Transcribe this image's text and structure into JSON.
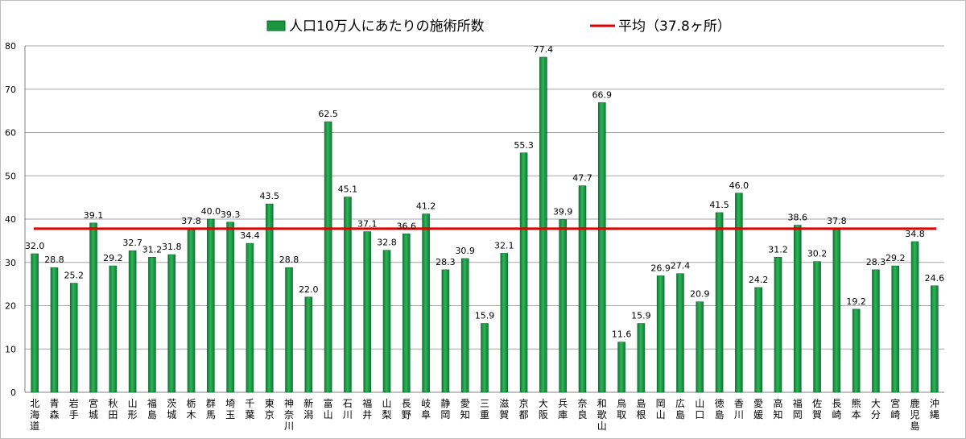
{
  "chart_data": {
    "type": "bar",
    "categories": [
      "北海道",
      "青森",
      "岩手",
      "宮城",
      "秋田",
      "山形",
      "福島",
      "茨城",
      "栃木",
      "群馬",
      "埼玉",
      "千葉",
      "東京",
      "神奈川",
      "新潟",
      "富山",
      "石川",
      "福井",
      "山梨",
      "長野",
      "岐阜",
      "静岡",
      "愛知",
      "三重",
      "滋賀",
      "京都",
      "大阪",
      "兵庫",
      "奈良",
      "和歌山",
      "鳥取",
      "島根",
      "岡山",
      "広島",
      "山口",
      "徳島",
      "香川",
      "愛媛",
      "高知",
      "福岡",
      "佐賀",
      "長崎",
      "熊本",
      "大分",
      "宮崎",
      "鹿児島",
      "沖縄"
    ],
    "series": [
      {
        "name": "人口10万人にあたりの施術所数",
        "color": "#1a9641",
        "values": [
          32.0,
          28.8,
          25.2,
          39.1,
          29.2,
          32.7,
          31.2,
          31.8,
          37.8,
          40.0,
          39.3,
          34.4,
          43.5,
          28.8,
          22.0,
          62.5,
          45.1,
          37.1,
          32.8,
          36.6,
          41.2,
          28.3,
          30.9,
          15.9,
          32.1,
          55.3,
          77.4,
          39.9,
          47.7,
          66.9,
          11.6,
          15.9,
          26.9,
          27.4,
          20.9,
          41.5,
          46.0,
          24.2,
          31.2,
          38.6,
          30.2,
          37.8,
          19.2,
          28.3,
          29.2,
          34.8,
          24.6
        ],
        "labels": [
          "32.0",
          "28.8",
          "25.2",
          "39.1",
          "29.2",
          "32.7",
          "31.2",
          "31.8",
          "37.8",
          "40.0",
          "39.3",
          "34.4",
          "43.5",
          "28.8",
          "22.0",
          "62.5",
          "45.1",
          "37.1",
          "32.8",
          "36.6",
          "41.2",
          "28.3",
          "30.9",
          "15.9",
          "32.1",
          "55.3",
          "77.4",
          "39.9",
          "47.7",
          "66.9",
          "11.6",
          "15.9",
          "26.9",
          "27.4",
          "20.9",
          "41.5",
          "46.0",
          "24.2",
          "31.2",
          "38.6",
          "30.2",
          "37.8",
          "19.2",
          "28.3",
          "29.2",
          "34.8",
          "24.6"
        ]
      }
    ],
    "average": {
      "name": "平均（37.8ヶ所）",
      "value": 37.8,
      "color": "#e00000"
    },
    "ylim": [
      0,
      80
    ],
    "yticks": [
      "0",
      "10",
      "20",
      "30",
      "40",
      "50",
      "60",
      "70",
      "80"
    ],
    "grid": true,
    "legend_position": "top-center"
  }
}
